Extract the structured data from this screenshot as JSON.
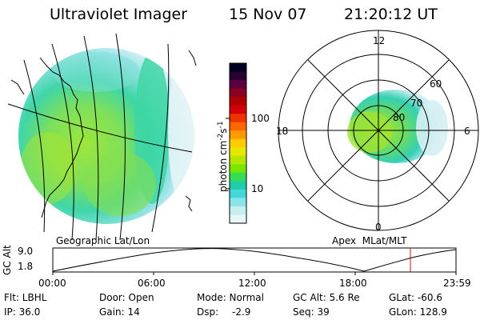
{
  "header": {
    "instrument": "Ultraviolet Imager",
    "date": "15 Nov 07",
    "time": "21:20:12 UT"
  },
  "left_panel": {
    "label": "Geographic Lat/Lon"
  },
  "right_panel": {
    "label": "Apex  MLat/MLT",
    "mlt_labels": [
      "12",
      "18",
      "6",
      "0"
    ],
    "mlat_labels": [
      "60",
      "70",
      "80"
    ]
  },
  "colorbar": {
    "unit_label": "photon cm",
    "unit_exp1": "-2",
    "unit_s": "s",
    "unit_exp2": "-1",
    "tick_100": "100",
    "tick_10": "10",
    "colors": [
      "#000022",
      "#2a0033",
      "#5a0040",
      "#8a0020",
      "#b00000",
      "#d4000a",
      "#ee3300",
      "#ff6600",
      "#ff9900",
      "#ffcc00",
      "#e6e600",
      "#b4e600",
      "#7ae600",
      "#33dd55",
      "#22ccaa",
      "#44d8d8",
      "#88e4e8",
      "#c4eef0",
      "#e8f6f8"
    ]
  },
  "altitude_plot": {
    "axis_title": "GC Alt",
    "ymax": "9.0",
    "ymin": "1.8",
    "x_ticks": [
      "00:00",
      "06:00",
      "12:00",
      "18:00",
      "23:59"
    ]
  },
  "info": {
    "filter": "Flt: LBHL",
    "door": "Door: Open",
    "mode": "Mode: Normal",
    "gc_alt": "GC Alt: 5.6 Re",
    "glat": "GLat: -60.6",
    "ip": "IP: 36.0",
    "gain": "Gain: 14",
    "dsp_label": "Dsp:",
    "dsp_value": "-2.9",
    "seq": "Seq: 39",
    "glon": "GLon: 128.9"
  }
}
